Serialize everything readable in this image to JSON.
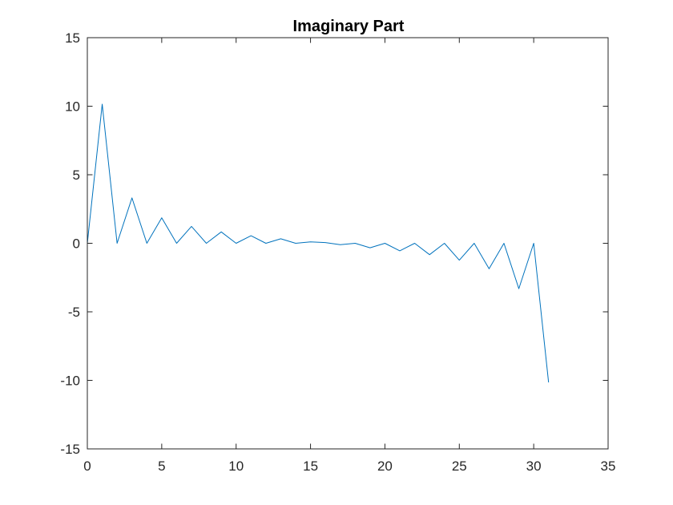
{
  "chart_data": {
    "type": "line",
    "title": "Imaginary Part",
    "xlabel": "",
    "ylabel": "",
    "xlim": [
      0,
      35
    ],
    "ylim": [
      -15,
      15
    ],
    "xticks": [
      0,
      5,
      10,
      15,
      20,
      25,
      30,
      35
    ],
    "yticks": [
      -15,
      -10,
      -5,
      0,
      5,
      10,
      15
    ],
    "xtick_labels": [
      "0",
      "5",
      "10",
      "15",
      "20",
      "25",
      "30",
      "35"
    ],
    "ytick_labels": [
      "-15",
      "-10",
      "-5",
      "0",
      "5",
      "10",
      "15"
    ],
    "grid": false,
    "legend": "none",
    "series": [
      {
        "color": "#0072BD",
        "x": [
          0,
          1,
          2,
          3,
          4,
          5,
          6,
          7,
          8,
          9,
          10,
          11,
          12,
          13,
          14,
          15,
          16,
          17,
          18,
          19,
          20,
          21,
          22,
          23,
          24,
          25,
          26,
          27,
          28,
          29,
          30,
          31
        ],
        "y": [
          0,
          10.15,
          0,
          3.31,
          0,
          1.86,
          0,
          1.23,
          0,
          0.83,
          0,
          0.55,
          0,
          0.33,
          0,
          0.1,
          0.05,
          -0.1,
          0,
          -0.33,
          0,
          -0.55,
          0,
          -0.83,
          0,
          -1.23,
          0,
          -1.86,
          0,
          -3.31,
          0,
          -10.15
        ]
      }
    ]
  }
}
